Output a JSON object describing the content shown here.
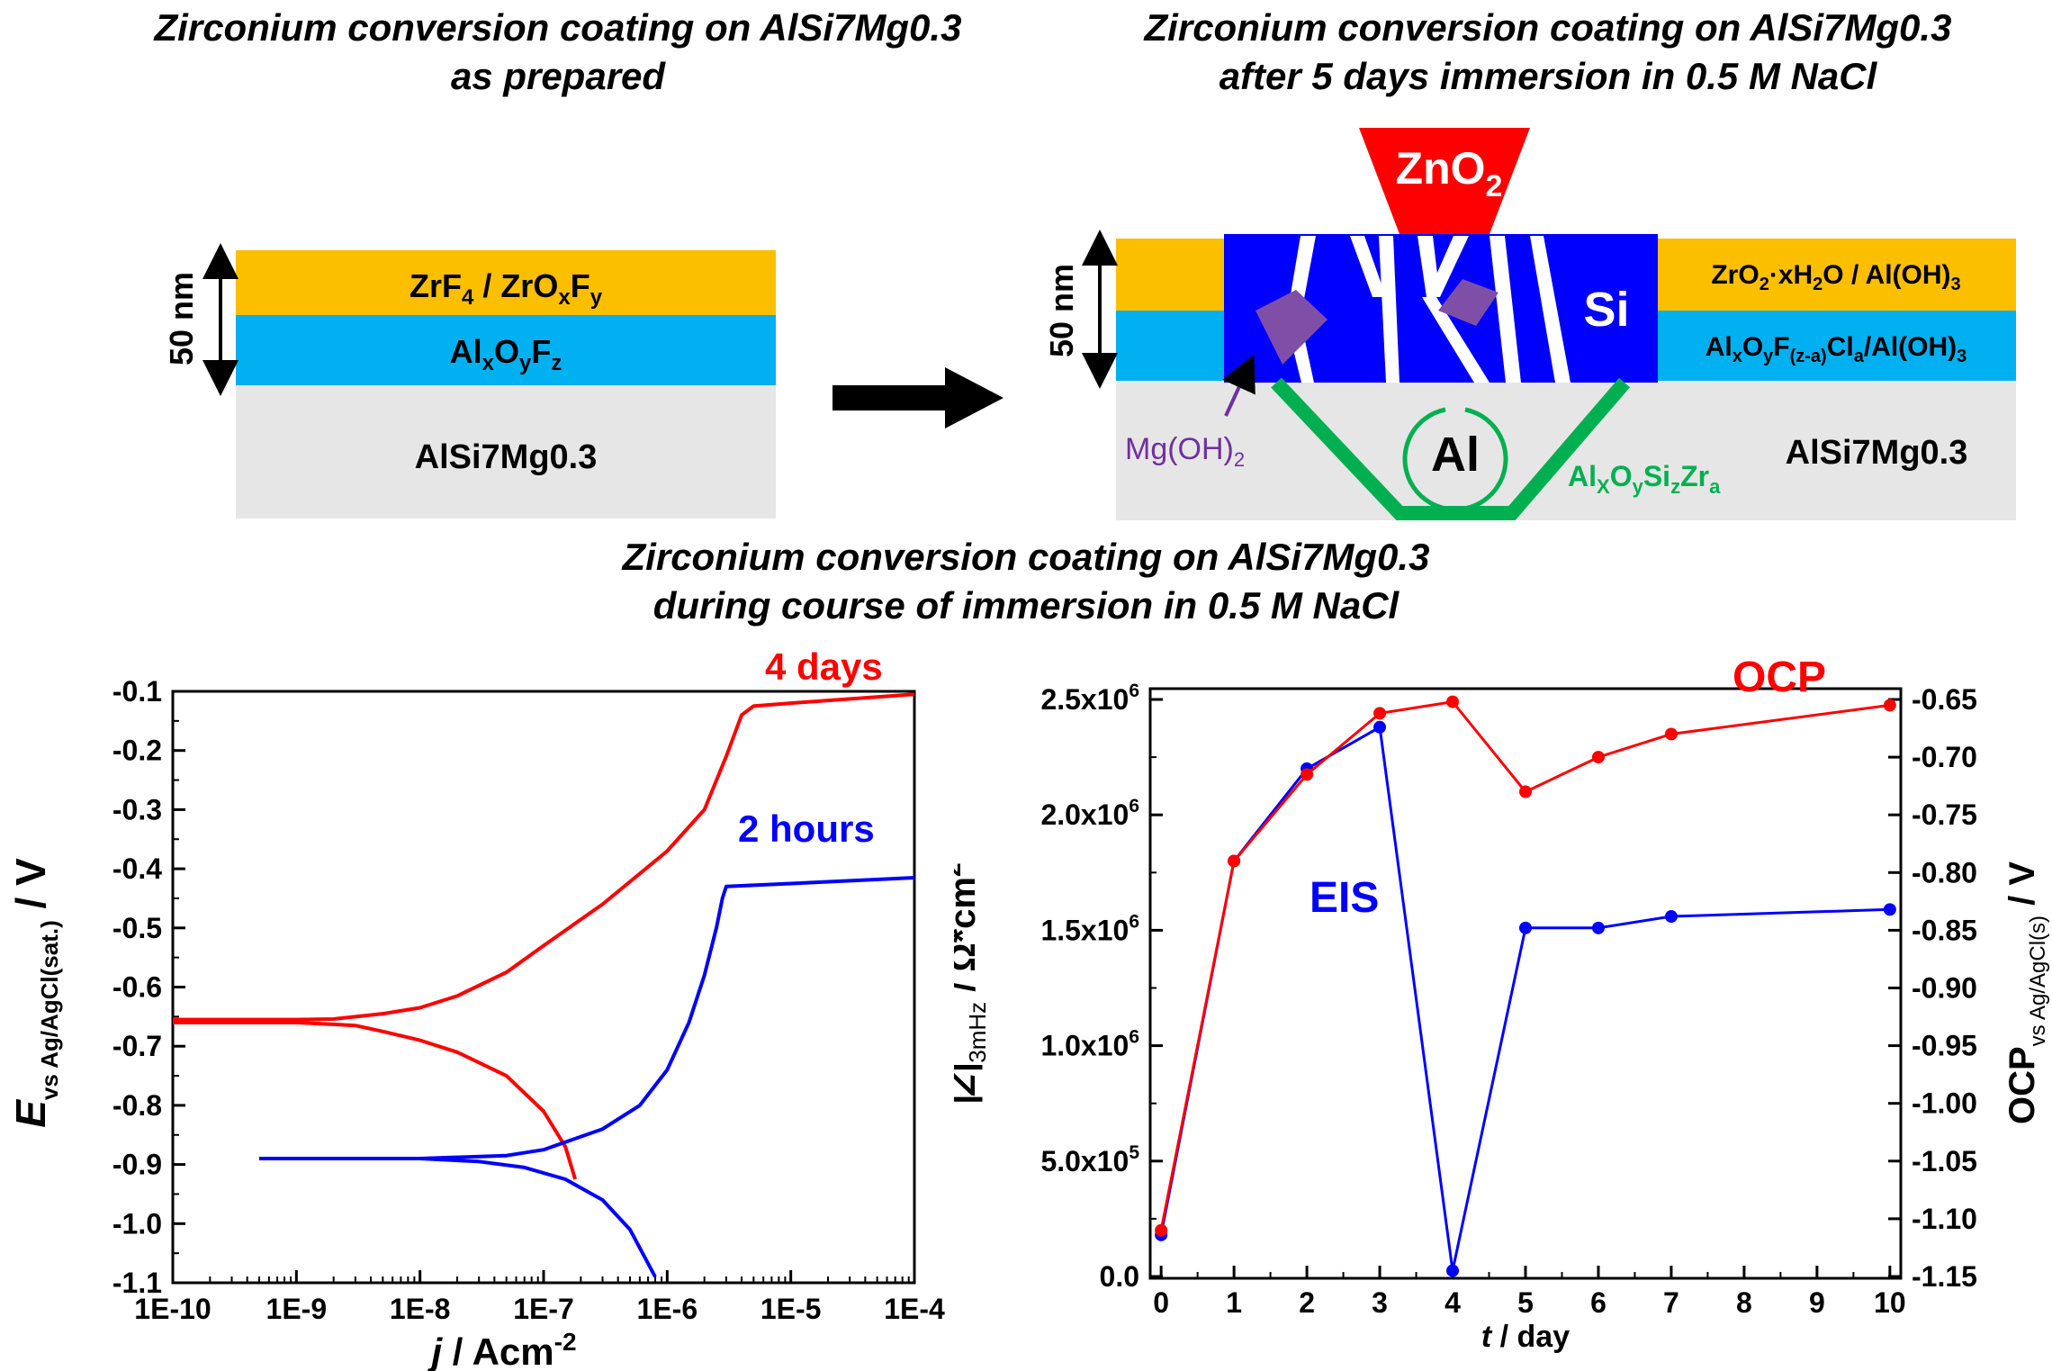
{
  "titles": {
    "left_line1": "Zirconium conversion coating on AlSi7Mg0.3",
    "left_line2": "as prepared",
    "right_line1": "Zirconium conversion coating on AlSi7Mg0.3",
    "right_line2": "after 5 days immersion in 0.5 M NaCl",
    "middle_line1": "Zirconium conversion coating on AlSi7Mg0.3",
    "middle_line2": "during course of immersion in 0.5 M NaCl"
  },
  "diagram_left": {
    "thickness": "50 nm",
    "top_layer": "ZrF4 / ZrOxFy",
    "middle_layer": "AlxOyFz",
    "substrate": "AlSi7Mg0.3",
    "colors": {
      "top": "#fbbf00",
      "middle": "#00b0f0",
      "substrate": "#e7e6e6"
    }
  },
  "diagram_right": {
    "thickness": "50 nm",
    "top_layer": "ZrO2·xH2O / Al(OH)3",
    "middle_layer": "AlxOyF(z-a)Cla/Al(OH)3",
    "substrate": "AlSi7Mg0.3",
    "particle_top": "ZnO2",
    "silicon": "Si",
    "aluminium": "Al",
    "magnesium": "Mg(OH)2",
    "interlayer": "AlXOySizZra",
    "colors": {
      "zno2": "#ff0000",
      "silicon": "#0000ff",
      "mg": "#7030a0",
      "interlayer": "#00b050"
    }
  },
  "chart_data": [
    {
      "type": "line",
      "title": "",
      "xlabel": "j / Acm-2",
      "ylabel": "E vs Ag/AgCl(sat.) / V",
      "xscale": "log",
      "xlim": [
        1e-10,
        0.0001
      ],
      "ylim": [
        -1.1,
        -0.1
      ],
      "x_ticks": [
        "1E-10",
        "1E-9",
        "1E-8",
        "1E-7",
        "1E-6",
        "1E-5",
        "1E-4"
      ],
      "y_ticks": [
        "-0.1",
        "-0.2",
        "-0.3",
        "-0.4",
        "-0.5",
        "-0.6",
        "-0.7",
        "-0.8",
        "-0.9",
        "-1.0",
        "-1.1"
      ],
      "series": [
        {
          "name": "4 days",
          "color": "#ff0000",
          "anodic": [
            [
              1e-10,
              -0.655
            ],
            [
              1e-09,
              -0.655
            ],
            [
              2e-09,
              -0.654
            ],
            [
              5e-09,
              -0.645
            ],
            [
              1e-08,
              -0.635
            ],
            [
              2e-08,
              -0.615
            ],
            [
              5e-08,
              -0.575
            ],
            [
              1e-07,
              -0.53
            ],
            [
              3e-07,
              -0.46
            ],
            [
              1e-06,
              -0.37
            ],
            [
              2e-06,
              -0.3
            ],
            [
              3e-06,
              -0.21
            ],
            [
              4e-06,
              -0.14
            ],
            [
              5e-06,
              -0.125
            ],
            [
              1e-05,
              -0.12
            ],
            [
              0.0001,
              -0.105
            ]
          ],
          "cathodic": [
            [
              1e-10,
              -0.66
            ],
            [
              1e-09,
              -0.66
            ],
            [
              3e-09,
              -0.665
            ],
            [
              5e-09,
              -0.675
            ],
            [
              1e-08,
              -0.69
            ],
            [
              2e-08,
              -0.71
            ],
            [
              5e-08,
              -0.75
            ],
            [
              1e-07,
              -0.81
            ],
            [
              1.5e-07,
              -0.87
            ],
            [
              1.8e-07,
              -0.925
            ]
          ]
        },
        {
          "name": "2 hours",
          "color": "#0000ff",
          "anodic": [
            [
              5e-10,
              -0.89
            ],
            [
              1e-08,
              -0.89
            ],
            [
              5e-08,
              -0.885
            ],
            [
              1e-07,
              -0.875
            ],
            [
              3e-07,
              -0.84
            ],
            [
              6e-07,
              -0.8
            ],
            [
              1e-06,
              -0.74
            ],
            [
              1.5e-06,
              -0.66
            ],
            [
              2e-06,
              -0.58
            ],
            [
              2.5e-06,
              -0.5
            ],
            [
              2.8e-06,
              -0.45
            ],
            [
              3e-06,
              -0.43
            ],
            [
              1e-05,
              -0.425
            ],
            [
              0.0001,
              -0.415
            ]
          ],
          "cathodic": [
            [
              5e-10,
              -0.89
            ],
            [
              1e-08,
              -0.89
            ],
            [
              3e-08,
              -0.895
            ],
            [
              7e-08,
              -0.905
            ],
            [
              1.5e-07,
              -0.925
            ],
            [
              3e-07,
              -0.96
            ],
            [
              5e-07,
              -1.01
            ],
            [
              8e-07,
              -1.09
            ]
          ]
        }
      ],
      "annotations": [
        "4 days",
        "2 hours"
      ]
    },
    {
      "type": "line",
      "title": "",
      "xlabel": "t / day",
      "ylabel_left": "|Z|3mHz / Ω*cm2",
      "ylabel_right": "OCP vs Ag/AgCl(s) / V",
      "xlim": [
        0,
        10
      ],
      "ylim_left": [
        0,
        2500000
      ],
      "ylim_right": [
        -1.15,
        -0.65
      ],
      "x_ticks": [
        "0",
        "1",
        "2",
        "3",
        "4",
        "5",
        "6",
        "7",
        "8",
        "9",
        "10"
      ],
      "y_left_ticks": [
        "0.0",
        "5.0x10^5",
        "1.0x10^6",
        "1.5x10^6",
        "2.0x10^6",
        "2.5x10^6"
      ],
      "y_right_ticks": [
        "-0.65",
        "-0.70",
        "-0.75",
        "-0.80",
        "-0.85",
        "-0.90",
        "-0.95",
        "-1.00",
        "-1.05",
        "-1.10",
        "-1.15"
      ],
      "series": [
        {
          "name": "EIS",
          "axis": "left",
          "color": "#0000ff",
          "x": [
            0,
            1,
            2,
            3,
            4,
            5,
            6,
            7,
            10
          ],
          "values": [
            180000,
            1800000,
            2200000,
            2380000,
            25000,
            1510000,
            1510000,
            1560000,
            1590000
          ]
        },
        {
          "name": "OCP",
          "axis": "right",
          "color": "#ff0000",
          "x": [
            0,
            1,
            2,
            3,
            4,
            5,
            6,
            7,
            10
          ],
          "values": [
            -1.11,
            -0.79,
            -0.715,
            -0.662,
            -0.652,
            -0.73,
            -0.7,
            -0.68,
            -0.655
          ]
        }
      ]
    }
  ]
}
